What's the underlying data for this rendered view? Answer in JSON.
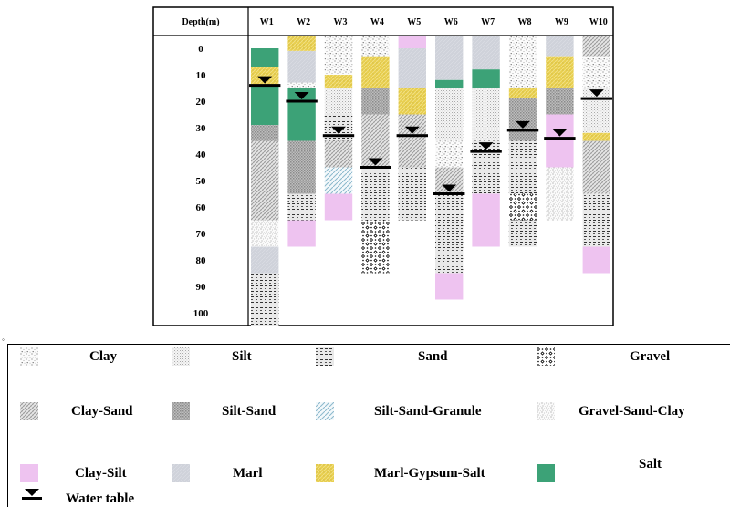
{
  "chart_data": {
    "type": "stratigraphic-column",
    "header": "Depth(m)",
    "depth_ticks": [
      0,
      10,
      20,
      30,
      40,
      50,
      60,
      70,
      80,
      90,
      100
    ],
    "wells": [
      {
        "name": "W1",
        "layers": [
          {
            "top": 0,
            "bottom": 7,
            "lith": "salt"
          },
          {
            "top": 7,
            "bottom": 14,
            "lith": "marl-gypsum-salt"
          },
          {
            "top": 14,
            "bottom": 29,
            "lith": "salt"
          },
          {
            "top": 29,
            "bottom": 35,
            "lith": "silt-sand"
          },
          {
            "top": 35,
            "bottom": 65,
            "lith": "clay-sand"
          },
          {
            "top": 65,
            "bottom": 75,
            "lith": "gravel-sand-clay"
          },
          {
            "top": 75,
            "bottom": 85,
            "lith": "marl"
          },
          {
            "top": 85,
            "bottom": 105,
            "lith": "sand"
          }
        ],
        "water_table": 14
      },
      {
        "name": "W2",
        "layers": [
          {
            "top": -5,
            "bottom": 1,
            "lith": "marl-gypsum-salt"
          },
          {
            "top": 1,
            "bottom": 13,
            "lith": "marl"
          },
          {
            "top": 13,
            "bottom": 15,
            "lith": "clay"
          },
          {
            "top": 15,
            "bottom": 35,
            "lith": "salt"
          },
          {
            "top": 35,
            "bottom": 55,
            "lith": "silt-sand"
          },
          {
            "top": 55,
            "bottom": 65,
            "lith": "sand"
          },
          {
            "top": 65,
            "bottom": 75,
            "lith": "clay-silt"
          }
        ],
        "water_table": 20
      },
      {
        "name": "W3",
        "layers": [
          {
            "top": -5,
            "bottom": 10,
            "lith": "clay"
          },
          {
            "top": 10,
            "bottom": 15,
            "lith": "marl-gypsum-salt"
          },
          {
            "top": 15,
            "bottom": 25,
            "lith": "silt"
          },
          {
            "top": 25,
            "bottom": 35,
            "lith": "sand"
          },
          {
            "top": 35,
            "bottom": 45,
            "lith": "clay-sand"
          },
          {
            "top": 45,
            "bottom": 55,
            "lith": "silt-sand-granule"
          },
          {
            "top": 55,
            "bottom": 65,
            "lith": "clay-silt"
          }
        ],
        "water_table": 33
      },
      {
        "name": "W4",
        "layers": [
          {
            "top": -5,
            "bottom": 3,
            "lith": "clay"
          },
          {
            "top": 3,
            "bottom": 15,
            "lith": "marl-gypsum-salt"
          },
          {
            "top": 15,
            "bottom": 25,
            "lith": "silt-sand"
          },
          {
            "top": 25,
            "bottom": 45,
            "lith": "clay-sand"
          },
          {
            "top": 45,
            "bottom": 65,
            "lith": "sand"
          },
          {
            "top": 65,
            "bottom": 85,
            "lith": "gravel"
          }
        ],
        "water_table": 45
      },
      {
        "name": "W5",
        "layers": [
          {
            "top": -5,
            "bottom": 0,
            "lith": "clay-silt"
          },
          {
            "top": 0,
            "bottom": 15,
            "lith": "marl"
          },
          {
            "top": 15,
            "bottom": 25,
            "lith": "marl-gypsum-salt"
          },
          {
            "top": 25,
            "bottom": 45,
            "lith": "clay-sand"
          },
          {
            "top": 45,
            "bottom": 65,
            "lith": "sand"
          }
        ],
        "water_table": 33
      },
      {
        "name": "W6",
        "layers": [
          {
            "top": -5,
            "bottom": 12,
            "lith": "marl"
          },
          {
            "top": 12,
            "bottom": 15,
            "lith": "salt"
          },
          {
            "top": 15,
            "bottom": 35,
            "lith": "silt"
          },
          {
            "top": 35,
            "bottom": 45,
            "lith": "clay"
          },
          {
            "top": 45,
            "bottom": 55,
            "lith": "clay-sand"
          },
          {
            "top": 55,
            "bottom": 85,
            "lith": "sand"
          },
          {
            "top": 85,
            "bottom": 95,
            "lith": "clay-silt"
          }
        ],
        "water_table": 55
      },
      {
        "name": "W7",
        "layers": [
          {
            "top": -5,
            "bottom": 8,
            "lith": "marl"
          },
          {
            "top": 8,
            "bottom": 15,
            "lith": "salt"
          },
          {
            "top": 15,
            "bottom": 35,
            "lith": "silt"
          },
          {
            "top": 35,
            "bottom": 55,
            "lith": "sand"
          },
          {
            "top": 55,
            "bottom": 75,
            "lith": "clay-silt"
          }
        ],
        "water_table": 39
      },
      {
        "name": "W8",
        "layers": [
          {
            "top": -5,
            "bottom": 15,
            "lith": "clay"
          },
          {
            "top": 15,
            "bottom": 19,
            "lith": "marl-gypsum-salt"
          },
          {
            "top": 19,
            "bottom": 35,
            "lith": "silt-sand"
          },
          {
            "top": 35,
            "bottom": 55,
            "lith": "sand"
          },
          {
            "top": 55,
            "bottom": 65,
            "lith": "gravel"
          },
          {
            "top": 65,
            "bottom": 75,
            "lith": "sand"
          }
        ],
        "water_table": 31
      },
      {
        "name": "W9",
        "layers": [
          {
            "top": -5,
            "bottom": 3,
            "lith": "marl"
          },
          {
            "top": 3,
            "bottom": 15,
            "lith": "marl-gypsum-salt"
          },
          {
            "top": 15,
            "bottom": 25,
            "lith": "silt-sand"
          },
          {
            "top": 25,
            "bottom": 45,
            "lith": "clay-silt"
          },
          {
            "top": 45,
            "bottom": 65,
            "lith": "gravel-sand-clay"
          }
        ],
        "water_table": 34
      },
      {
        "name": "W10",
        "layers": [
          {
            "top": -5,
            "bottom": 3,
            "lith": "clay-sand"
          },
          {
            "top": 3,
            "bottom": 15,
            "lith": "clay"
          },
          {
            "top": 15,
            "bottom": 32,
            "lith": "silt"
          },
          {
            "top": 32,
            "bottom": 35,
            "lith": "marl-gypsum-salt"
          },
          {
            "top": 35,
            "bottom": 55,
            "lith": "clay-sand"
          },
          {
            "top": 55,
            "bottom": 75,
            "lith": "sand"
          },
          {
            "top": 75,
            "bottom": 85,
            "lith": "clay-silt"
          }
        ],
        "water_table": 19
      }
    ]
  },
  "legend": [
    {
      "key": "clay",
      "label": "Clay"
    },
    {
      "key": "silt",
      "label": "Silt"
    },
    {
      "key": "sand",
      "label": "Sand"
    },
    {
      "key": "gravel",
      "label": "Gravel"
    },
    {
      "key": "clay-sand",
      "label": "Clay-Sand"
    },
    {
      "key": "silt-sand",
      "label": "Silt-Sand"
    },
    {
      "key": "silt-sand-granule",
      "label": "Silt-Sand-Granule"
    },
    {
      "key": "gravel-sand-clay",
      "label": "Gravel-Sand-Clay"
    },
    {
      "key": "clay-silt",
      "label": "Clay-Silt"
    },
    {
      "key": "marl",
      "label": "Marl"
    },
    {
      "key": "marl-gypsum-salt",
      "label": "Marl-Gypsum-Salt"
    },
    {
      "key": "salt",
      "label": "Salt"
    },
    {
      "key": "water-table",
      "label": "Water table"
    }
  ],
  "colors": {
    "salt": "#3ca277",
    "clay-silt": "#eec3f0",
    "marl-gypsum-salt": "#e8cf4f",
    "marl": "#cfd2da"
  },
  "corner_mark": "◦"
}
